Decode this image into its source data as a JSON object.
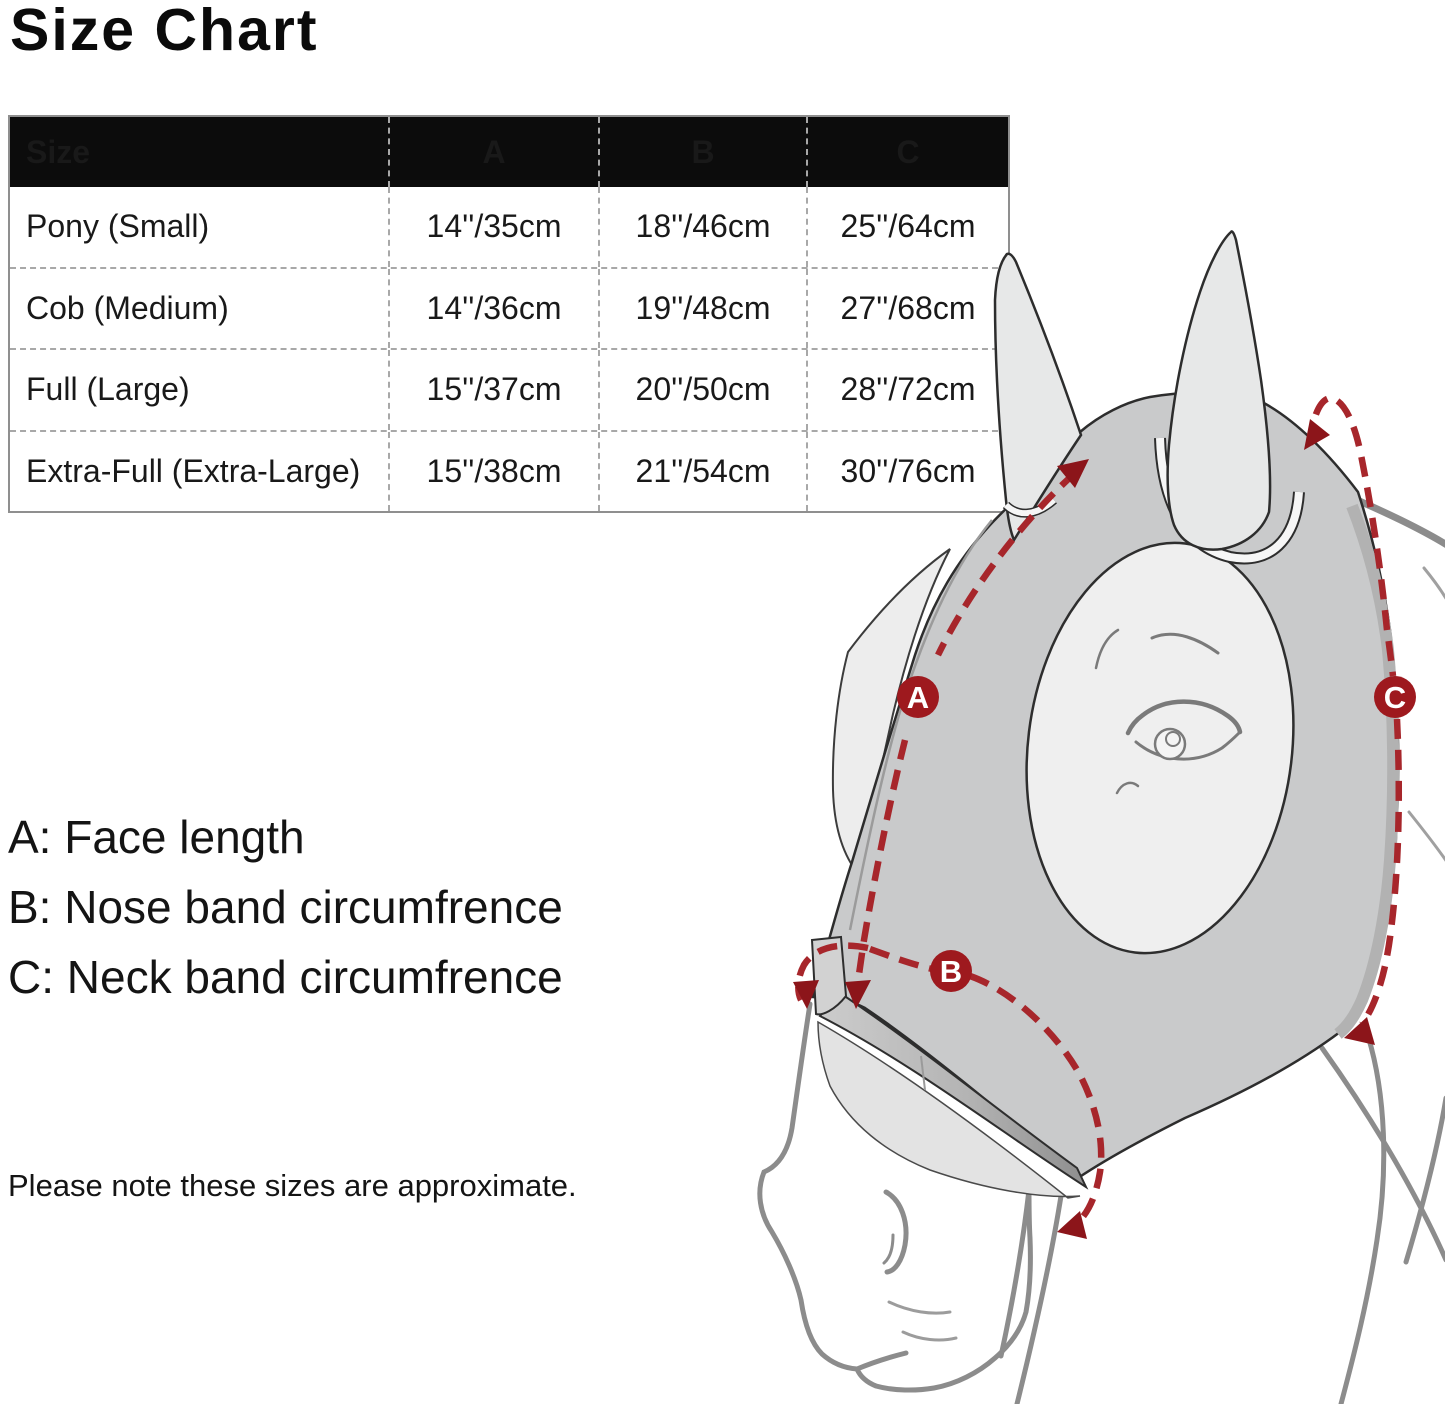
{
  "title": "Size Chart",
  "table": {
    "columns": [
      "Size",
      "A",
      "B",
      "C"
    ],
    "rows": [
      [
        "Pony (Small)",
        "14''/35cm",
        "18''/46cm",
        "25''/64cm"
      ],
      [
        "Cob (Medium)",
        "14''/36cm",
        "19''/48cm",
        "27''/68cm"
      ],
      [
        "Full (Large)",
        "15''/37cm",
        "20''/50cm",
        "28''/72cm"
      ],
      [
        "Extra-Full (Extra-Large)",
        "15''/38cm",
        "21''/54cm",
        "30''/76cm"
      ]
    ]
  },
  "legend": [
    "A: Face length",
    "B: Nose band circumfrence",
    "C: Neck band circumfrence"
  ],
  "note": "Please note these sizes are approximate.",
  "diagram": {
    "labels": [
      "A",
      "B",
      "C"
    ],
    "colors": {
      "measurement_line": "#a7262b",
      "arrowhead": "#8c151a",
      "label_circle": "#9e191e",
      "mask_fill": "#c9cacb",
      "ear_fill": "#e7e8e8",
      "eye_hole_fill": "#efefef",
      "sketch_stroke": "#8c8c8c",
      "header_bg": "#0c0c0c"
    }
  }
}
